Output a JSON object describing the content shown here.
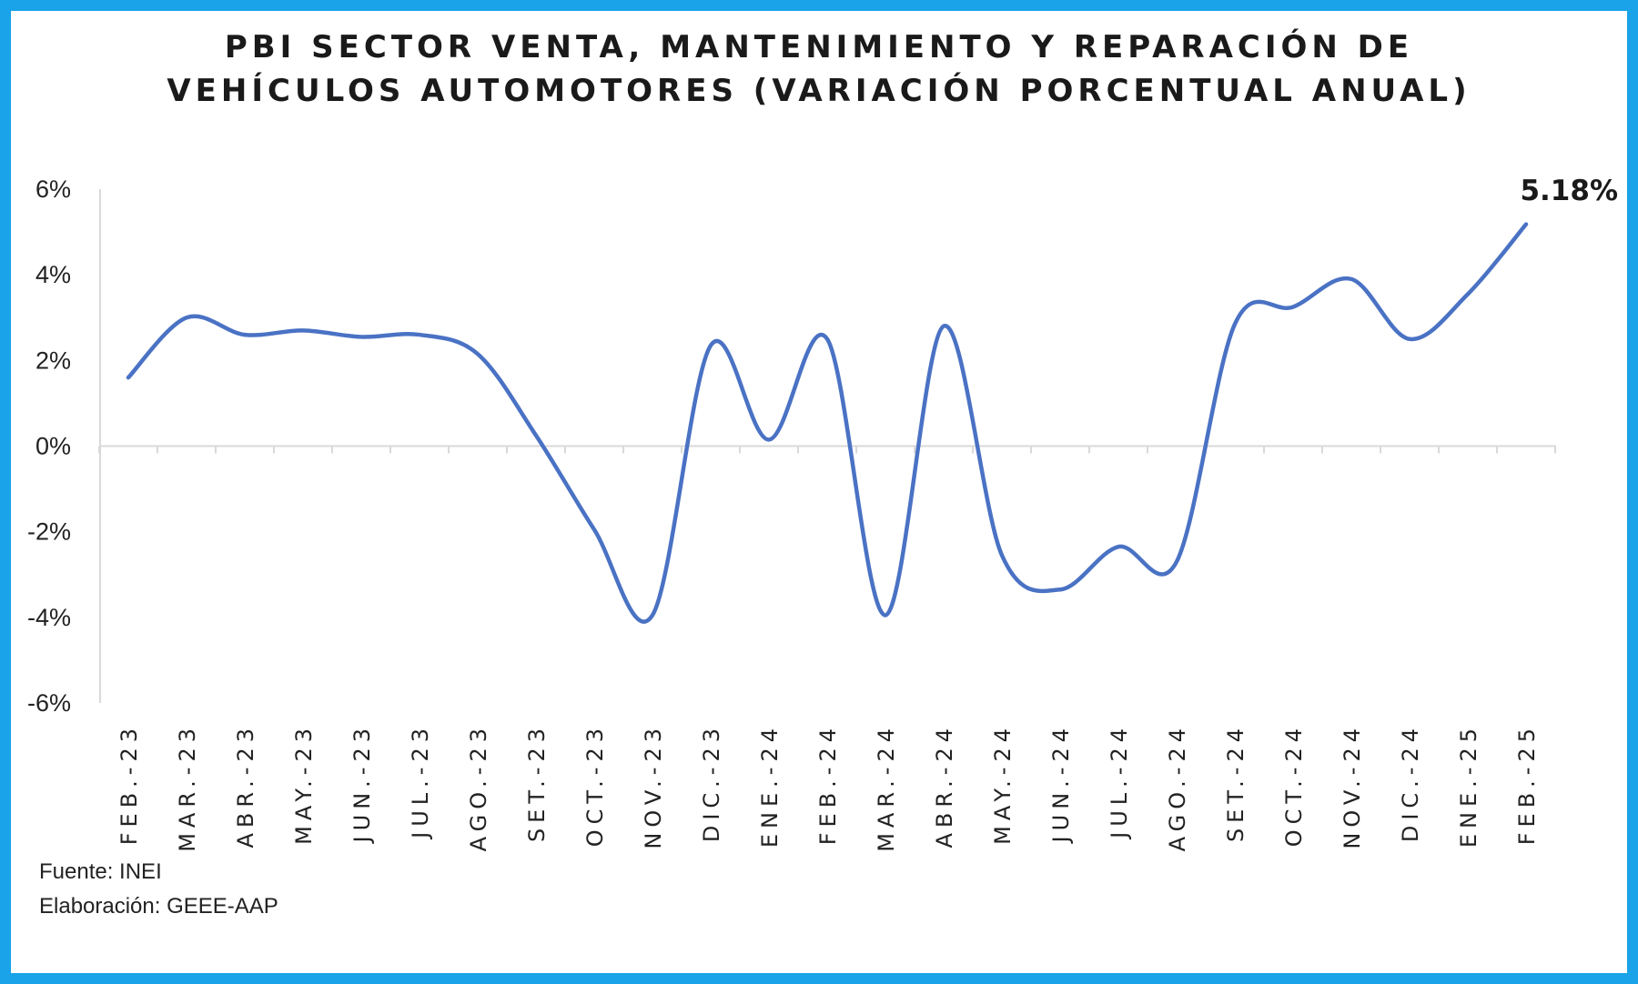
{
  "chart_data": {
    "type": "line",
    "title_line1": "PBI SECTOR VENTA, MANTENIMIENTO Y REPARACIÓN DE",
    "title_line2": "VEHÍCULOS AUTOMOTORES (VARIACIÓN PORCENTUAL ANUAL)",
    "categories": [
      "FEB.-23",
      "MAR.-23",
      "ABR.-23",
      "MAY.-23",
      "JUN.-23",
      "JUL.-23",
      "AGO.-23",
      "SET.-23",
      "OCT.-23",
      "NOV.-23",
      "DIC.-23",
      "ENE.-24",
      "FEB.-24",
      "MAR.-24",
      "ABR.-24",
      "MAY.-24",
      "JUN.-24",
      "JUL.-24",
      "AGO.-24",
      "SET.-24",
      "OCT.-24",
      "NOV.-24",
      "DIC.-24",
      "ENE.-25",
      "FEB.-25"
    ],
    "series": [
      {
        "values": [
          1.6,
          3.0,
          2.6,
          2.7,
          2.55,
          2.6,
          2.15,
          0.25,
          -1.95,
          -3.95,
          2.35,
          0.15,
          2.5,
          -3.95,
          2.8,
          -2.55,
          -3.35,
          -2.35,
          -2.7,
          2.85,
          3.25,
          3.9,
          2.5,
          3.55,
          5.18
        ]
      }
    ],
    "yticks": [
      "6%",
      "4%",
      "2%",
      "0%",
      "-2%",
      "-4%",
      "-6%"
    ],
    "ytick_values": [
      6,
      4,
      2,
      0,
      -2,
      -4,
      -6
    ],
    "ylim": [
      -6,
      6
    ],
    "annotation": "5.18%",
    "line_color": "#4a72c4",
    "grid": false
  },
  "footer": {
    "source": "Fuente: INEI",
    "credit": "Elaboración: GEEE-AAP"
  },
  "colors": {
    "border": "#1aa3e8",
    "axis": "#d9d9d9"
  }
}
